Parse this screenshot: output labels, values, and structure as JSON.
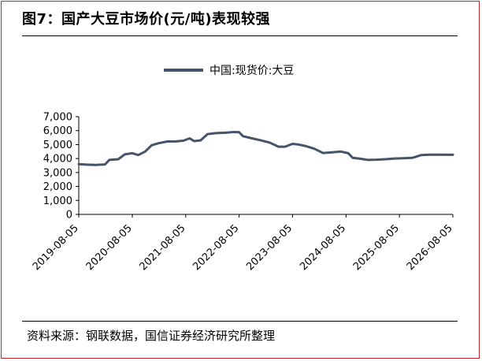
{
  "title": "图7：国产大豆市场价(元/吨)表现较强",
  "source": "资料来源：钢联数据，国信证券经济研究所整理",
  "colors": {
    "line": "#44546a",
    "frame": "#c0272d",
    "axis": "#000000"
  },
  "chart_data": {
    "type": "line",
    "x_type": "date",
    "xlim": [
      "2019-08-05",
      "2026-08-05"
    ],
    "ylim": [
      0,
      7000
    ],
    "yticks": [
      0,
      1000,
      2000,
      3000,
      4000,
      5000,
      6000,
      7000
    ],
    "ytick_labels": [
      "0",
      "1,000",
      "2,000",
      "3,000",
      "4,000",
      "5,000",
      "6,000",
      "7,000"
    ],
    "xticks": [
      "2019-08-05",
      "2020-08-05",
      "2021-08-05",
      "2022-08-05",
      "2023-08-05",
      "2024-08-05",
      "2025-08-05",
      "2026-08-05"
    ],
    "xtick_labels": [
      "2019-08-05",
      "2020-08-05",
      "2021-08-05",
      "2022-08-05",
      "2023-08-05",
      "2024-08-05",
      "2025-08-05",
      "2026-08-05"
    ],
    "grid": false,
    "legend_position": "top-center",
    "series": [
      {
        "name": "中国:现货价:大豆",
        "points": [
          [
            "2019-08-05",
            3600
          ],
          [
            "2019-10-01",
            3560
          ],
          [
            "2019-12-01",
            3540
          ],
          [
            "2020-02-01",
            3580
          ],
          [
            "2020-03-01",
            3900
          ],
          [
            "2020-05-01",
            3950
          ],
          [
            "2020-06-15",
            4300
          ],
          [
            "2020-08-05",
            4380
          ],
          [
            "2020-09-15",
            4250
          ],
          [
            "2020-11-01",
            4500
          ],
          [
            "2020-12-15",
            4950
          ],
          [
            "2021-02-01",
            5100
          ],
          [
            "2021-04-01",
            5220
          ],
          [
            "2021-06-01",
            5230
          ],
          [
            "2021-07-20",
            5280
          ],
          [
            "2021-09-01",
            5450
          ],
          [
            "2021-10-01",
            5250
          ],
          [
            "2021-11-15",
            5300
          ],
          [
            "2022-01-01",
            5750
          ],
          [
            "2022-03-01",
            5820
          ],
          [
            "2022-05-01",
            5850
          ],
          [
            "2022-07-01",
            5900
          ],
          [
            "2022-08-05",
            5880
          ],
          [
            "2022-09-01",
            5600
          ],
          [
            "2022-11-01",
            5450
          ],
          [
            "2023-01-01",
            5300
          ],
          [
            "2023-03-01",
            5150
          ],
          [
            "2023-05-01",
            4850
          ],
          [
            "2023-06-15",
            4850
          ],
          [
            "2023-08-05",
            5050
          ],
          [
            "2023-09-15",
            5000
          ],
          [
            "2023-11-01",
            4900
          ],
          [
            "2024-01-01",
            4700
          ],
          [
            "2024-03-01",
            4400
          ],
          [
            "2024-05-01",
            4450
          ],
          [
            "2024-07-01",
            4500
          ],
          [
            "2024-08-20",
            4380
          ],
          [
            "2024-09-20",
            4050
          ],
          [
            "2024-11-01",
            4000
          ],
          [
            "2025-01-01",
            3900
          ],
          [
            "2025-03-01",
            3920
          ],
          [
            "2025-05-01",
            3950
          ],
          [
            "2025-07-01",
            4000
          ],
          [
            "2025-09-01",
            4020
          ],
          [
            "2025-11-01",
            4050
          ],
          [
            "2026-01-01",
            4250
          ],
          [
            "2026-03-01",
            4280
          ],
          [
            "2026-05-01",
            4280
          ],
          [
            "2026-08-05",
            4270
          ]
        ]
      }
    ]
  }
}
